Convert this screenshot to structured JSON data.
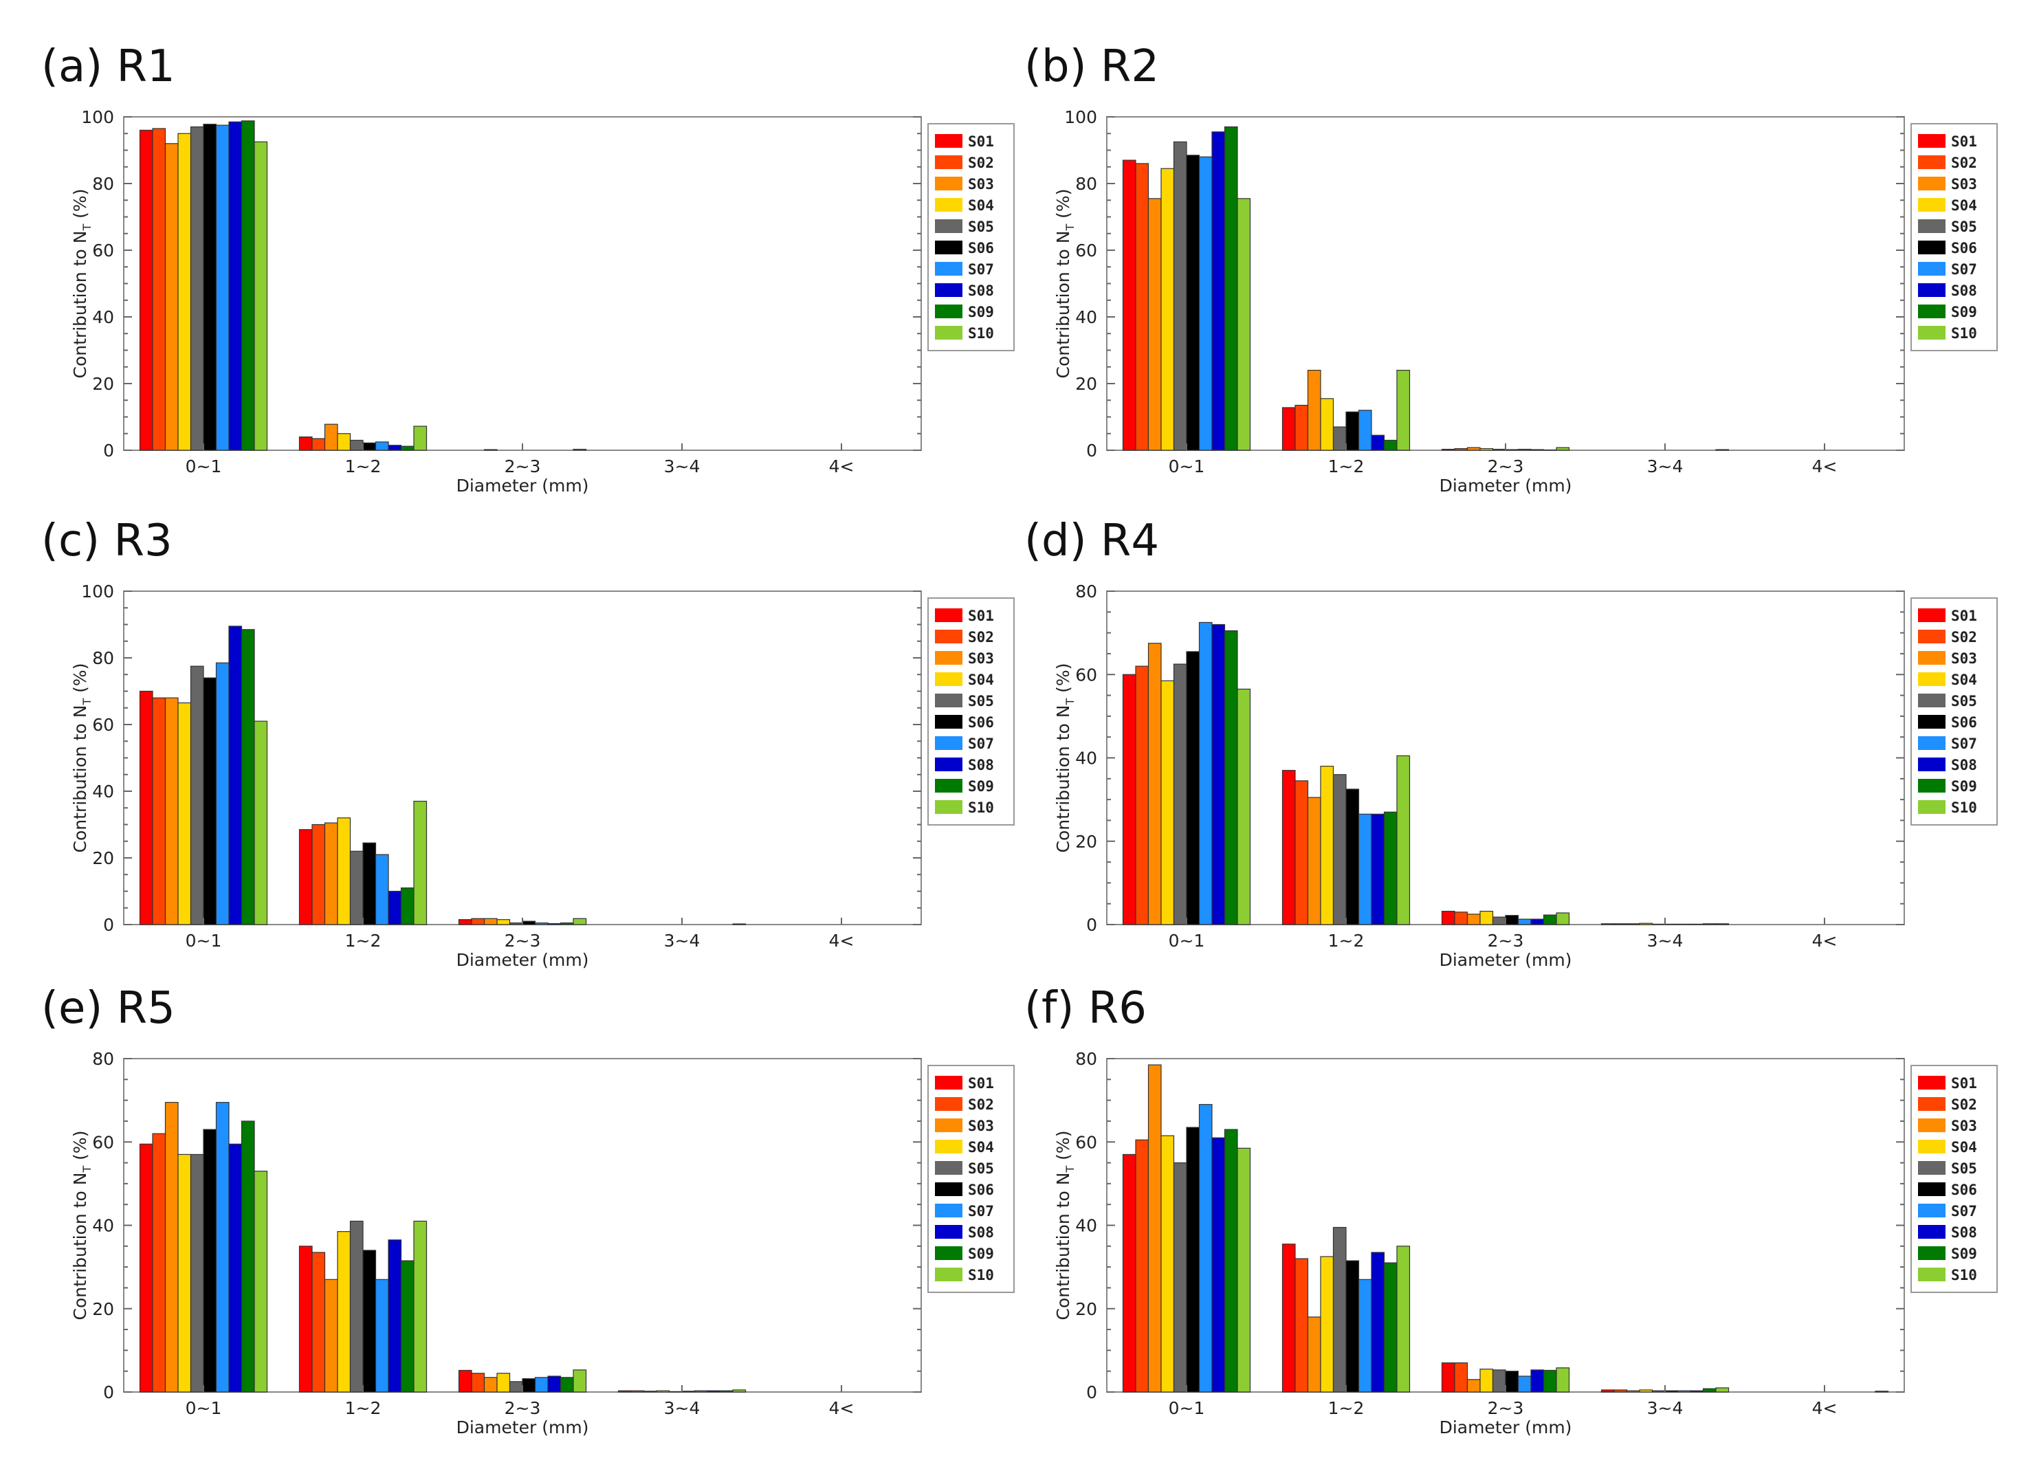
{
  "panels": [
    {
      "label": "(a) R1",
      "chart_data": {
        "type": "bar",
        "title": "(a) R1",
        "xlabel": "Diameter (mm)",
        "ylabel": "Contribution to N_T (%)",
        "ylabel_main": "Contribution to N",
        "ylabel_sub": "T",
        "ylabel_suffix": " (%)",
        "categories": [
          "0~1",
          "1~2",
          "2~3",
          "3~4",
          "4<"
        ],
        "ylim": [
          0,
          100
        ],
        "yticks": [
          0,
          20,
          40,
          60,
          80,
          100
        ],
        "series": [
          {
            "name": "S01",
            "values": [
              96.0,
              4.0,
              0.0,
              0.0,
              0.0
            ]
          },
          {
            "name": "S02",
            "values": [
              96.5,
              3.5,
              0.0,
              0.0,
              0.0
            ]
          },
          {
            "name": "S03",
            "values": [
              92.0,
              7.8,
              0.2,
              0.0,
              0.0
            ]
          },
          {
            "name": "S04",
            "values": [
              95.0,
              5.0,
              0.0,
              0.0,
              0.0
            ]
          },
          {
            "name": "S05",
            "values": [
              97.0,
              3.0,
              0.0,
              0.0,
              0.0
            ]
          },
          {
            "name": "S06",
            "values": [
              97.8,
              2.2,
              0.0,
              0.0,
              0.0
            ]
          },
          {
            "name": "S07",
            "values": [
              97.5,
              2.5,
              0.0,
              0.0,
              0.0
            ]
          },
          {
            "name": "S08",
            "values": [
              98.5,
              1.5,
              0.0,
              0.0,
              0.0
            ]
          },
          {
            "name": "S09",
            "values": [
              98.8,
              1.2,
              0.0,
              0.0,
              0.0
            ]
          },
          {
            "name": "S10",
            "values": [
              92.5,
              7.2,
              0.3,
              0.0,
              0.0
            ]
          }
        ]
      }
    },
    {
      "label": "(b) R2",
      "chart_data": {
        "type": "bar",
        "title": "(b) R2",
        "xlabel": "Diameter (mm)",
        "ylabel": "Contribution to N_T (%)",
        "ylabel_main": "Contribution to N",
        "ylabel_sub": "T",
        "ylabel_suffix": " (%)",
        "categories": [
          "0~1",
          "1~2",
          "2~3",
          "3~4",
          "4<"
        ],
        "ylim": [
          0,
          100
        ],
        "yticks": [
          0,
          20,
          40,
          60,
          80,
          100
        ],
        "series": [
          {
            "name": "S01",
            "values": [
              87.0,
              12.8,
              0.3,
              0.0,
              0.0
            ]
          },
          {
            "name": "S02",
            "values": [
              86.0,
              13.5,
              0.5,
              0.0,
              0.0
            ]
          },
          {
            "name": "S03",
            "values": [
              75.5,
              24.0,
              0.8,
              0.0,
              0.0
            ]
          },
          {
            "name": "S04",
            "values": [
              84.5,
              15.5,
              0.5,
              0.0,
              0.0
            ]
          },
          {
            "name": "S05",
            "values": [
              92.5,
              7.0,
              0.3,
              0.0,
              0.0
            ]
          },
          {
            "name": "S06",
            "values": [
              88.5,
              11.5,
              0.2,
              0.0,
              0.0
            ]
          },
          {
            "name": "S07",
            "values": [
              88.0,
              12.0,
              0.3,
              0.0,
              0.0
            ]
          },
          {
            "name": "S08",
            "values": [
              95.5,
              4.5,
              0.2,
              0.0,
              0.0
            ]
          },
          {
            "name": "S09",
            "values": [
              97.0,
              3.0,
              0.1,
              0.0,
              0.0
            ]
          },
          {
            "name": "S10",
            "values": [
              75.5,
              24.0,
              0.8,
              0.2,
              0.0
            ]
          }
        ]
      }
    },
    {
      "label": "(c) R3",
      "chart_data": {
        "type": "bar",
        "title": "(c) R3",
        "xlabel": "Diameter (mm)",
        "ylabel": "Contribution to N_T (%)",
        "ylabel_main": "Contribution to N",
        "ylabel_sub": "T",
        "ylabel_suffix": " (%)",
        "categories": [
          "0~1",
          "1~2",
          "2~3",
          "3~4",
          "4<"
        ],
        "ylim": [
          0,
          100
        ],
        "yticks": [
          0,
          20,
          40,
          60,
          80,
          100
        ],
        "series": [
          {
            "name": "S01",
            "values": [
              70.0,
              28.5,
              1.5,
              0.0,
              0.0
            ]
          },
          {
            "name": "S02",
            "values": [
              68.0,
              30.0,
              1.8,
              0.0,
              0.0
            ]
          },
          {
            "name": "S03",
            "values": [
              68.0,
              30.5,
              1.8,
              0.0,
              0.0
            ]
          },
          {
            "name": "S04",
            "values": [
              66.5,
              32.0,
              1.5,
              0.0,
              0.0
            ]
          },
          {
            "name": "S05",
            "values": [
              77.5,
              22.0,
              0.5,
              0.0,
              0.0
            ]
          },
          {
            "name": "S06",
            "values": [
              74.0,
              24.5,
              1.0,
              0.0,
              0.0
            ]
          },
          {
            "name": "S07",
            "values": [
              78.5,
              21.0,
              0.5,
              0.0,
              0.0
            ]
          },
          {
            "name": "S08",
            "values": [
              89.5,
              10.0,
              0.3,
              0.0,
              0.0
            ]
          },
          {
            "name": "S09",
            "values": [
              88.5,
              11.0,
              0.5,
              0.0,
              0.0
            ]
          },
          {
            "name": "S10",
            "values": [
              61.0,
              37.0,
              1.8,
              0.2,
              0.0
            ]
          }
        ]
      }
    },
    {
      "label": "(d) R4",
      "chart_data": {
        "type": "bar",
        "title": "(d) R4",
        "xlabel": "Diameter (mm)",
        "ylabel": "Contribution to N_T (%)",
        "ylabel_main": "Contribution to N",
        "ylabel_sub": "T",
        "ylabel_suffix": " (%)",
        "categories": [
          "0~1",
          "1~2",
          "2~3",
          "3~4",
          "4<"
        ],
        "ylim": [
          0,
          80
        ],
        "yticks": [
          0,
          20,
          40,
          60,
          80
        ],
        "series": [
          {
            "name": "S01",
            "values": [
              60.0,
              37.0,
              3.2,
              0.2,
              0.0
            ]
          },
          {
            "name": "S02",
            "values": [
              62.0,
              34.5,
              3.0,
              0.2,
              0.0
            ]
          },
          {
            "name": "S03",
            "values": [
              67.5,
              30.5,
              2.5,
              0.2,
              0.0
            ]
          },
          {
            "name": "S04",
            "values": [
              58.5,
              38.0,
              3.2,
              0.3,
              0.0
            ]
          },
          {
            "name": "S05",
            "values": [
              62.5,
              36.0,
              1.8,
              0.1,
              0.0
            ]
          },
          {
            "name": "S06",
            "values": [
              65.5,
              32.5,
              2.2,
              0.1,
              0.0
            ]
          },
          {
            "name": "S07",
            "values": [
              72.5,
              26.5,
              1.3,
              0.1,
              0.0
            ]
          },
          {
            "name": "S08",
            "values": [
              72.0,
              26.5,
              1.3,
              0.1,
              0.0
            ]
          },
          {
            "name": "S09",
            "values": [
              70.5,
              27.0,
              2.3,
              0.2,
              0.0
            ]
          },
          {
            "name": "S10",
            "values": [
              56.5,
              40.5,
              2.8,
              0.2,
              0.0
            ]
          }
        ]
      }
    },
    {
      "label": "(e) R5",
      "chart_data": {
        "type": "bar",
        "title": "(e) R5",
        "xlabel": "Diameter (mm)",
        "ylabel": "Contribution to N_T (%)",
        "ylabel_main": "Contribution to N",
        "ylabel_sub": "T",
        "ylabel_suffix": " (%)",
        "categories": [
          "0~1",
          "1~2",
          "2~3",
          "3~4",
          "4<"
        ],
        "ylim": [
          0,
          80
        ],
        "yticks": [
          0,
          20,
          40,
          60,
          80
        ],
        "series": [
          {
            "name": "S01",
            "values": [
              59.5,
              35.0,
              5.2,
              0.3,
              0.0
            ]
          },
          {
            "name": "S02",
            "values": [
              62.0,
              33.5,
              4.5,
              0.3,
              0.0
            ]
          },
          {
            "name": "S03",
            "values": [
              69.5,
              27.0,
              3.5,
              0.2,
              0.0
            ]
          },
          {
            "name": "S04",
            "values": [
              57.0,
              38.5,
              4.5,
              0.3,
              0.0
            ]
          },
          {
            "name": "S05",
            "values": [
              57.0,
              41.0,
              2.5,
              0.1,
              0.0
            ]
          },
          {
            "name": "S06",
            "values": [
              63.0,
              34.0,
              3.2,
              0.2,
              0.0
            ]
          },
          {
            "name": "S07",
            "values": [
              69.5,
              27.0,
              3.5,
              0.3,
              0.0
            ]
          },
          {
            "name": "S08",
            "values": [
              59.5,
              36.5,
              3.8,
              0.3,
              0.0
            ]
          },
          {
            "name": "S09",
            "values": [
              65.0,
              31.5,
              3.5,
              0.3,
              0.0
            ]
          },
          {
            "name": "S10",
            "values": [
              53.0,
              41.0,
              5.3,
              0.5,
              0.0
            ]
          }
        ]
      }
    },
    {
      "label": "(f) R6",
      "chart_data": {
        "type": "bar",
        "title": "(f) R6",
        "xlabel": "Diameter (mm)",
        "ylabel": "Contribution to N_T (%)",
        "ylabel_main": "Contribution to N",
        "ylabel_sub": "T",
        "ylabel_suffix": " (%)",
        "categories": [
          "0~1",
          "1~2",
          "2~3",
          "3~4",
          "4<"
        ],
        "ylim": [
          0,
          80
        ],
        "yticks": [
          0,
          20,
          40,
          60,
          80
        ],
        "series": [
          {
            "name": "S01",
            "values": [
              57.0,
              35.5,
              7.0,
              0.5,
              0.0
            ]
          },
          {
            "name": "S02",
            "values": [
              60.5,
              32.0,
              7.0,
              0.5,
              0.0
            ]
          },
          {
            "name": "S03",
            "values": [
              78.5,
              18.0,
              3.0,
              0.3,
              0.0
            ]
          },
          {
            "name": "S04",
            "values": [
              61.5,
              32.5,
              5.5,
              0.5,
              0.0
            ]
          },
          {
            "name": "S05",
            "values": [
              55.0,
              39.5,
              5.3,
              0.3,
              0.0
            ]
          },
          {
            "name": "S06",
            "values": [
              63.5,
              31.5,
              5.0,
              0.3,
              0.0
            ]
          },
          {
            "name": "S07",
            "values": [
              69.0,
              27.0,
              3.8,
              0.3,
              0.0
            ]
          },
          {
            "name": "S08",
            "values": [
              61.0,
              33.5,
              5.3,
              0.3,
              0.0
            ]
          },
          {
            "name": "S09",
            "values": [
              63.0,
              31.0,
              5.2,
              0.8,
              0.0
            ]
          },
          {
            "name": "S10",
            "values": [
              58.5,
              35.0,
              5.8,
              1.0,
              0.2
            ]
          }
        ]
      }
    }
  ],
  "series_colors": [
    "#ff0000",
    "#ff4500",
    "#ff8c00",
    "#ffd700",
    "#666666",
    "#000000",
    "#1e90ff",
    "#0000cd",
    "#007a00",
    "#8ccd32"
  ]
}
